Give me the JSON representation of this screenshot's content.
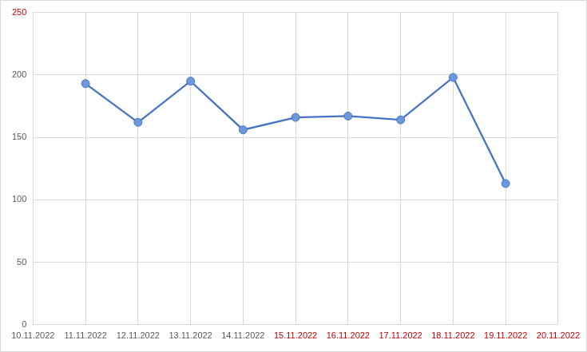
{
  "chart_data": {
    "type": "line",
    "categories": [
      "10.11.2022",
      "11.11.2022",
      "12.11.2022",
      "13.11.2022",
      "14.11.2022",
      "15.11.2022",
      "16.11.2022",
      "17.11.2022",
      "18.11.2022",
      "19.11.2022",
      "20.11.2022"
    ],
    "values": [
      null,
      193,
      162,
      195,
      156,
      166,
      167,
      164,
      198,
      113,
      null
    ],
    "color": "#4472c4",
    "marker": "circle",
    "ylim": [
      0,
      250
    ],
    "yticks": [
      0,
      50,
      100,
      150,
      200,
      250
    ],
    "grid": true
  }
}
